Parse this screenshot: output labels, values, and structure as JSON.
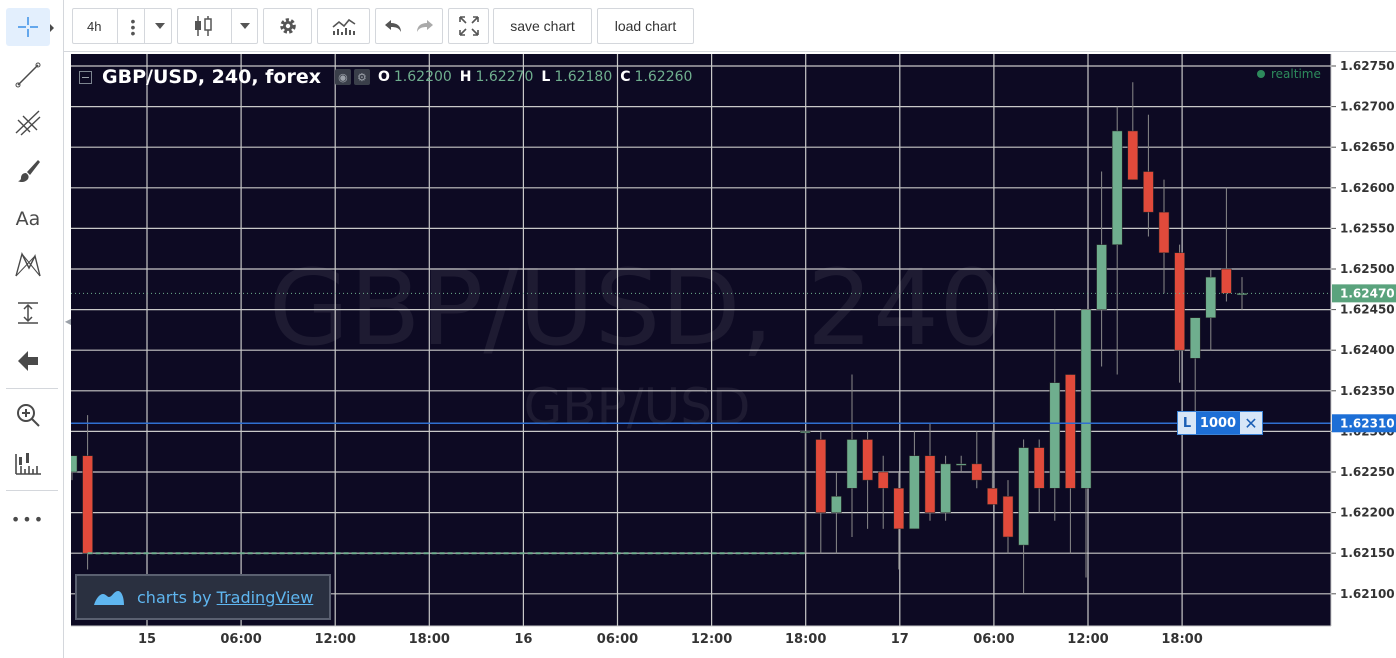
{
  "left_toolbar": {
    "tools": [
      {
        "name": "crosshair-icon",
        "active": true
      },
      {
        "name": "trend-line-icon"
      },
      {
        "name": "pitchfork-icon"
      },
      {
        "name": "brush-icon"
      },
      {
        "name": "text-tool-icon",
        "label": "Aa"
      },
      {
        "name": "pattern-icon"
      },
      {
        "name": "measure-icon"
      },
      {
        "name": "arrow-left-icon"
      },
      {
        "name": "zoom-in-icon"
      },
      {
        "name": "ruler-icon"
      },
      {
        "name": "more-icon",
        "label": "•••"
      }
    ]
  },
  "top_toolbar": {
    "interval": "4h",
    "save_label": "save chart",
    "load_label": "load chart",
    "icons": [
      "more-vertical-icon",
      "chevron-down-icon",
      "candles-icon",
      "gear-icon",
      "indicators-icon",
      "undo-icon",
      "redo-icon",
      "fullscreen-icon"
    ]
  },
  "legend": {
    "symbol": "GBP/USD, 240, forex",
    "o_label": "O",
    "o_value": "1.62200",
    "h_label": "H",
    "h_value": "1.62270",
    "l_label": "L",
    "l_value": "1.62180",
    "c_label": "C",
    "c_value": "1.62260"
  },
  "watermark": {
    "main": "GBP/USD, 240",
    "sub": "GBP/USD"
  },
  "realtime_label": "realtime",
  "position": {
    "side": "L",
    "quantity": "1000",
    "price": "1.62310"
  },
  "last_price_label": "1.62470",
  "branding": {
    "prefix": "charts by",
    "brand": "TradingView"
  },
  "colors": {
    "background": "#0d0a23",
    "grid": "#c8c8c8",
    "up": "#6fae8e",
    "down": "#e14a3b",
    "position_line": "#2f6fd0"
  },
  "chart_data": {
    "type": "candlestick",
    "symbol": "GBP/USD",
    "interval": "240",
    "y_axis_ticks": [
      "1.62100",
      "1.62150",
      "1.62200",
      "1.62250",
      "1.62300",
      "1.62350",
      "1.62400",
      "1.62450",
      "1.62500",
      "1.62550",
      "1.62600",
      "1.62650",
      "1.62700",
      "1.62750"
    ],
    "x_axis_ticks": [
      "15",
      "06:00",
      "12:00",
      "18:00",
      "16",
      "06:00",
      "12:00",
      "18:00",
      "17",
      "06:00",
      "12:00",
      "18:00"
    ],
    "ylim": [
      1.6205,
      1.6278
    ],
    "grid": true,
    "last_price": 1.6247,
    "position_price": 1.6231,
    "candles": [
      {
        "o": 1.6225,
        "h": 1.6227,
        "l": 1.6224,
        "c": 1.6227
      },
      {
        "o": 1.6227,
        "h": 1.6232,
        "l": 1.6213,
        "c": 1.6215
      },
      {
        "o": 1.623,
        "h": 1.623,
        "l": 1.6215,
        "c": 1.623
      },
      {
        "o": 1.6229,
        "h": 1.623,
        "l": 1.6215,
        "c": 1.622
      },
      {
        "o": 1.622,
        "h": 1.6225,
        "l": 1.6215,
        "c": 1.6222
      },
      {
        "o": 1.6223,
        "h": 1.6237,
        "l": 1.6217,
        "c": 1.6229
      },
      {
        "o": 1.6229,
        "h": 1.623,
        "l": 1.6218,
        "c": 1.6224
      },
      {
        "o": 1.6225,
        "h": 1.6227,
        "l": 1.6218,
        "c": 1.6223
      },
      {
        "o": 1.6223,
        "h": 1.6225,
        "l": 1.6213,
        "c": 1.6218
      },
      {
        "o": 1.6218,
        "h": 1.623,
        "l": 1.6218,
        "c": 1.6227
      },
      {
        "o": 1.6227,
        "h": 1.6231,
        "l": 1.6219,
        "c": 1.622
      },
      {
        "o": 1.622,
        "h": 1.6227,
        "l": 1.6219,
        "c": 1.6226
      },
      {
        "o": 1.6226,
        "h": 1.6227,
        "l": 1.6225,
        "c": 1.6226
      },
      {
        "o": 1.6226,
        "h": 1.623,
        "l": 1.6223,
        "c": 1.6224
      },
      {
        "o": 1.6223,
        "h": 1.623,
        "l": 1.6221,
        "c": 1.6221
      },
      {
        "o": 1.6222,
        "h": 1.6224,
        "l": 1.6215,
        "c": 1.6217
      },
      {
        "o": 1.6216,
        "h": 1.6229,
        "l": 1.621,
        "c": 1.6228
      },
      {
        "o": 1.6228,
        "h": 1.6229,
        "l": 1.622,
        "c": 1.6223
      },
      {
        "o": 1.6223,
        "h": 1.6245,
        "l": 1.6219,
        "c": 1.6236
      },
      {
        "o": 1.6237,
        "h": 1.6237,
        "l": 1.6215,
        "c": 1.6223
      },
      {
        "o": 1.6223,
        "h": 1.6245,
        "l": 1.6212,
        "c": 1.6245
      },
      {
        "o": 1.6245,
        "h": 1.6262,
        "l": 1.6238,
        "c": 1.6253
      },
      {
        "o": 1.6253,
        "h": 1.627,
        "l": 1.6237,
        "c": 1.6267
      },
      {
        "o": 1.6267,
        "h": 1.6273,
        "l": 1.6261,
        "c": 1.6261
      },
      {
        "o": 1.6262,
        "h": 1.6269,
        "l": 1.6254,
        "c": 1.6257
      },
      {
        "o": 1.6257,
        "h": 1.6261,
        "l": 1.6247,
        "c": 1.6252
      },
      {
        "o": 1.6252,
        "h": 1.6253,
        "l": 1.6236,
        "c": 1.624
      },
      {
        "o": 1.6239,
        "h": 1.6244,
        "l": 1.6231,
        "c": 1.6244
      },
      {
        "o": 1.6244,
        "h": 1.625,
        "l": 1.624,
        "c": 1.6249
      },
      {
        "o": 1.625,
        "h": 1.626,
        "l": 1.6246,
        "c": 1.6247
      },
      {
        "o": 1.6247,
        "h": 1.6249,
        "l": 1.6245,
        "c": 1.6247
      }
    ]
  }
}
